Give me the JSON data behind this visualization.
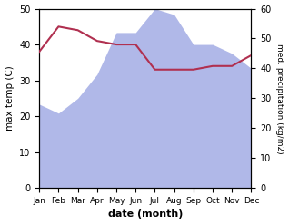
{
  "months": [
    "Jan",
    "Feb",
    "Mar",
    "Apr",
    "May",
    "Jun",
    "Jul",
    "Aug",
    "Sep",
    "Oct",
    "Nov",
    "Dec"
  ],
  "temperature": [
    38,
    45,
    44,
    41,
    40,
    40,
    33,
    33,
    33,
    34,
    34,
    37
  ],
  "precipitation": [
    28,
    25,
    30,
    38,
    52,
    52,
    60,
    58,
    48,
    48,
    45,
    40
  ],
  "temp_color": "#b03050",
  "precip_color": "#b0b8e8",
  "ylabel_left": "max temp (C)",
  "ylabel_right": "med. precipitation (kg/m2)",
  "xlabel": "date (month)",
  "ylim_left": [
    0,
    50
  ],
  "ylim_right": [
    0,
    60
  ],
  "bg_color": "#ffffff"
}
